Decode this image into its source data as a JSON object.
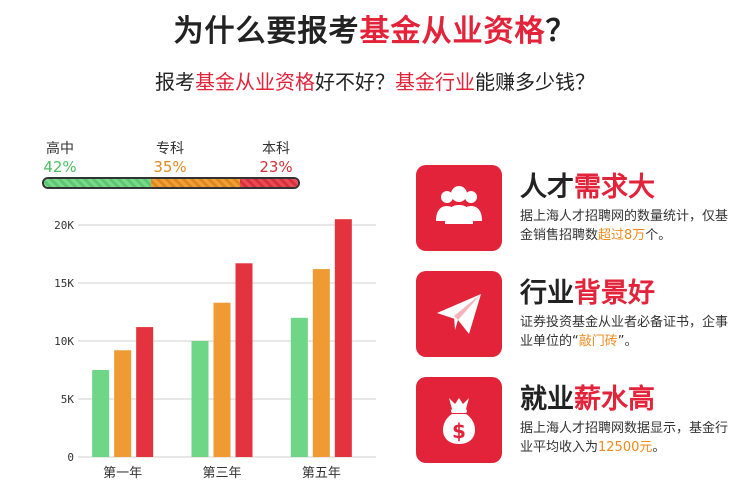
{
  "title": {
    "prefix": "为什么要报考",
    "highlight": "基金从业资格",
    "suffix": "？"
  },
  "subtitle": {
    "p1": "报考",
    "h1": "基金从业资格",
    "p2": "好不好？",
    "h2": "基金行业",
    "p3": "能赚多少钱？"
  },
  "education": [
    {
      "label": "高中",
      "pct": "42%",
      "value": 42,
      "color": "#4bbf63"
    },
    {
      "label": "专科",
      "pct": "35%",
      "value": 35,
      "color": "#e08a1e"
    },
    {
      "label": "本科",
      "pct": "23%",
      "value": 23,
      "color": "#d7303d"
    }
  ],
  "chart_data": {
    "type": "bar",
    "categories": [
      "第一年",
      "第三年",
      "第五年"
    ],
    "series": [
      {
        "values": [
          7.5,
          10,
          12
        ],
        "color": "#6fd688"
      },
      {
        "values": [
          9.2,
          13.3,
          16.2
        ],
        "color": "#ef9a33"
      },
      {
        "values": [
          11.2,
          16.7,
          20.5
        ],
        "color": "#e2333f"
      }
    ],
    "yticks": [
      "0",
      "5K",
      "10K",
      "15K",
      "20K"
    ],
    "ylim": [
      0,
      20
    ],
    "grid": true
  },
  "cards": [
    {
      "icon": "people-icon",
      "t1": "人才",
      "t2": "需求大",
      "d1": "据上海人才招聘网的数量统计，仅基金销售招聘数",
      "d2": "超过8万",
      "d3": "个。"
    },
    {
      "icon": "paper-plane-icon",
      "t1": "行业",
      "t2": "背景好",
      "d1": "证券投资基金从业者必备证书，企事业单位的“",
      "d2": "敲门砖",
      "d3": "”。"
    },
    {
      "icon": "money-bag-icon",
      "t1": "就业",
      "t2": "薪水高",
      "d1": "据上海人才招聘网数据显示，基金行业平均收入为",
      "d2": "12500元",
      "d3": "。"
    }
  ]
}
